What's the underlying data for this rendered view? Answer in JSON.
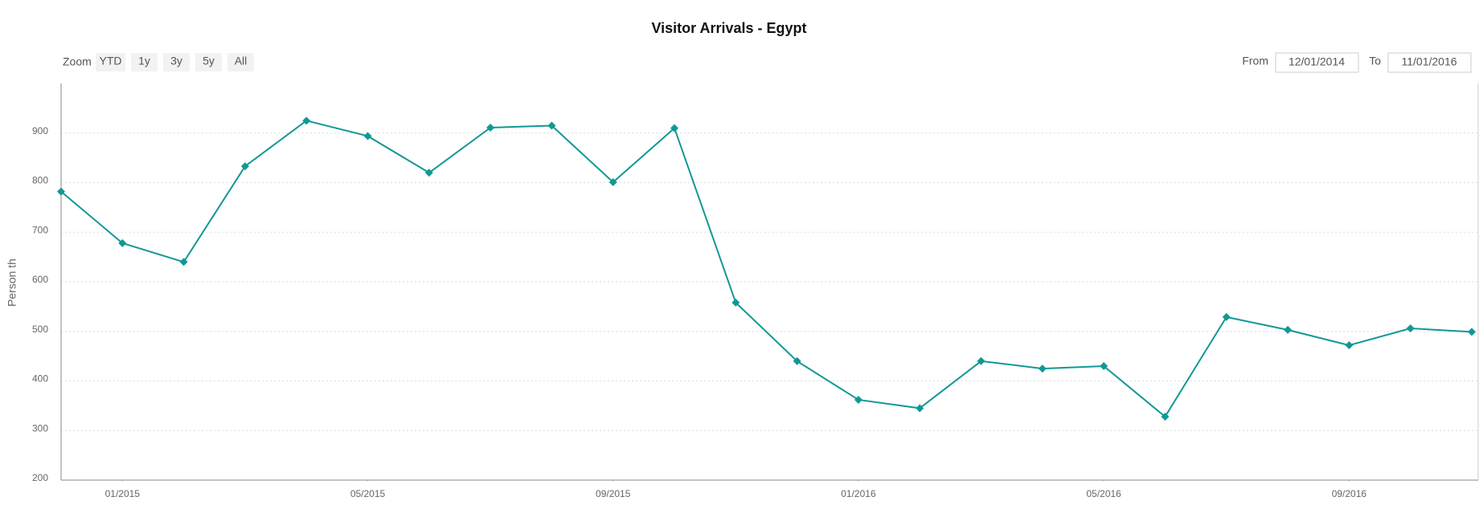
{
  "chart_data": {
    "type": "line",
    "title": "Visitor Arrivals - Egypt",
    "y_label": "Person th",
    "zoom_label": "Zoom",
    "zoom_buttons": [
      "YTD",
      "1y",
      "3y",
      "5y",
      "All"
    ],
    "from_label": "From",
    "from": "12/01/2014",
    "to_label": "To",
    "to": "11/01/2016",
    "x": [
      "2014-12",
      "2015-01",
      "2015-02",
      "2015-03",
      "2015-04",
      "2015-05",
      "2015-06",
      "2015-07",
      "2015-08",
      "2015-09",
      "2015-10",
      "2015-11",
      "2015-12",
      "2016-01",
      "2016-02",
      "2016-03",
      "2016-04",
      "2016-05",
      "2016-06",
      "2016-07",
      "2016-08",
      "2016-09",
      "2016-10",
      "2016-11"
    ],
    "values": [
      782,
      678,
      640,
      833,
      925,
      894,
      820,
      911,
      915,
      801,
      910,
      558,
      440,
      362,
      345,
      440,
      425,
      430,
      328,
      529,
      503,
      472,
      506,
      499
    ],
    "color": "#119894",
    "xlim": [
      "2014-12",
      "2016-11"
    ],
    "xticks": [
      {
        "value": "2015-01",
        "label": "01/2015"
      },
      {
        "value": "2015-05",
        "label": "05/2015"
      },
      {
        "value": "2015-09",
        "label": "09/2015"
      },
      {
        "value": "2016-01",
        "label": "01/2016"
      },
      {
        "value": "2016-05",
        "label": "05/2016"
      },
      {
        "value": "2016-09",
        "label": "09/2016"
      }
    ],
    "ylim": [
      200,
      1000
    ],
    "yticks": [
      200,
      300,
      400,
      500,
      600,
      700,
      800,
      900
    ],
    "grid": true
  }
}
